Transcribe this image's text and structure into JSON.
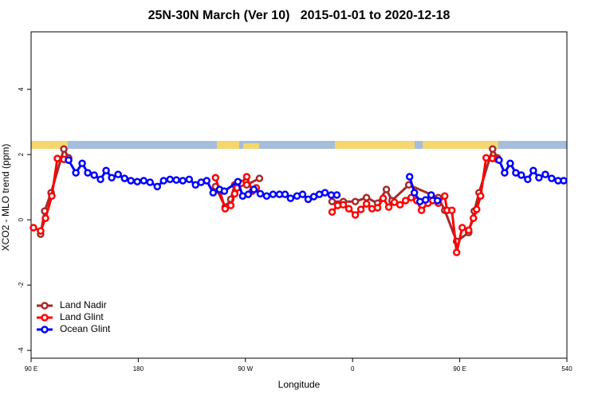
{
  "chart_data": {
    "type": "line",
    "title": "25N-30N March (Ver 10)   2015-01-01 to 2020-12-18",
    "xlabel": "Longitude",
    "ylabel": "XCO2 - MLO trend (ppm)",
    "xlim": [
      90,
      540
    ],
    "ylim": [
      -4.24,
      5.76
    ],
    "xticks": [
      {
        "value": 90,
        "label": "90 E"
      },
      180,
      {
        "value": 270,
        "label": "90 W"
      },
      {
        "value": 360,
        "label": "0"
      },
      {
        "value": 450,
        "label": "90 E"
      },
      540
    ],
    "yticks": [
      -4,
      -2,
      0,
      2,
      4
    ],
    "legend": "bottomleft",
    "series": [
      {
        "name": "Land Nadir",
        "color": "#a52a2a",
        "x": [
          98.0,
          101.4,
          106.8,
          117.5,
          121.5,
          190,
          244.9,
          253.0,
          257.7,
          261.0,
          271.1,
          281.8,
          320,
          342.8,
          352.2,
          362.3,
          371.7,
          381.0,
          388.4,
          393.1,
          407.2,
          432.0,
          437.4,
          447.4,
          457.5,
          462.2,
          466.2,
          477.6,
          481.6
        ],
        "values": [
          -0.44,
          0.27,
          0.83,
          2.17,
          1.9,
          null,
          1.02,
          0.39,
          0.63,
          1.07,
          1.07,
          1.27,
          null,
          0.56,
          0.56,
          0.56,
          0.68,
          0.51,
          0.93,
          0.59,
          1.07,
          0.68,
          0.29,
          -0.66,
          -0.39,
          0.27,
          0.83,
          2.17,
          1.9
        ]
      },
      {
        "name": "Land Glint",
        "color": "#ff0000",
        "x": [
          92.0,
          98.0,
          102.1,
          107.4,
          112.1,
          117.5,
          121.5,
          190,
          244.9,
          248.3,
          253.0,
          257.7,
          261.0,
          263.0,
          266.4,
          271.1,
          275.8,
          279.1,
          320,
          342.8,
          347.5,
          352.2,
          356.9,
          362.3,
          367.0,
          371.7,
          376.3,
          381.0,
          385.7,
          390.4,
          395.1,
          399.8,
          404.5,
          409.2,
          413.9,
          417.9,
          423.3,
          427.3,
          432.0,
          437.4,
          439.4,
          443.4,
          447.4,
          452.1,
          457.5,
          461.5,
          464.2,
          467.5,
          472.2,
          477.6,
          481.6
        ],
        "values": [
          -0.24,
          -0.34,
          0.05,
          0.73,
          1.88,
          1.85,
          1.83,
          null,
          1.29,
          0.9,
          0.34,
          0.44,
          0.8,
          0.98,
          1.12,
          1.32,
          0.88,
          0.98,
          null,
          0.24,
          0.44,
          0.46,
          0.34,
          0.15,
          0.32,
          0.49,
          0.34,
          0.37,
          0.66,
          0.39,
          0.54,
          0.46,
          0.59,
          0.68,
          0.59,
          0.29,
          0.51,
          0.59,
          0.51,
          0.73,
          0.29,
          0.29,
          -1.0,
          -0.24,
          -0.32,
          0.05,
          0.32,
          0.73,
          1.9,
          1.88,
          1.85
        ]
      },
      {
        "name": "Ocean Glint",
        "color": "#0000ff",
        "x": [
          121.5,
          127.6,
          132.9,
          137.6,
          143.0,
          148.3,
          153.0,
          157.7,
          163.1,
          168.5,
          173.8,
          179.2,
          184.6,
          189.9,
          196.0,
          201.3,
          206.7,
          212.0,
          217.4,
          222.8,
          228.1,
          232.8,
          237.5,
          242.9,
          248.3,
          252.3,
          263.7,
          267.7,
          272.4,
          277.1,
          282.5,
          287.8,
          293.2,
          298.6,
          303.3,
          307.9,
          313.3,
          318.0,
          322.7,
          327.4,
          332.1,
          336.8,
          342.1,
          346.8,
          400,
          407.9,
          411.9,
          416.6,
          421.3,
          426.0,
          431.3,
          480,
          483.0,
          487.7,
          492.4,
          497.1,
          501.7,
          507.1,
          511.8,
          516.5,
          521.9,
          527.2,
          532.6,
          537.3
        ],
        "values": [
          1.83,
          1.44,
          1.73,
          1.44,
          1.37,
          1.24,
          1.51,
          1.29,
          1.39,
          1.27,
          1.2,
          1.17,
          1.2,
          1.15,
          1.02,
          1.2,
          1.24,
          1.22,
          1.2,
          1.24,
          1.07,
          1.15,
          1.2,
          0.83,
          0.93,
          0.88,
          1.17,
          0.73,
          0.78,
          0.93,
          0.8,
          0.73,
          0.78,
          0.78,
          0.78,
          0.66,
          0.73,
          0.78,
          0.63,
          0.71,
          0.78,
          0.83,
          0.76,
          0.76,
          null,
          1.32,
          0.83,
          0.56,
          0.61,
          0.76,
          0.59,
          null,
          1.83,
          1.44,
          1.73,
          1.44,
          1.37,
          1.24,
          1.51,
          1.29,
          1.39,
          1.27,
          1.2,
          1.2
        ]
      }
    ]
  }
}
